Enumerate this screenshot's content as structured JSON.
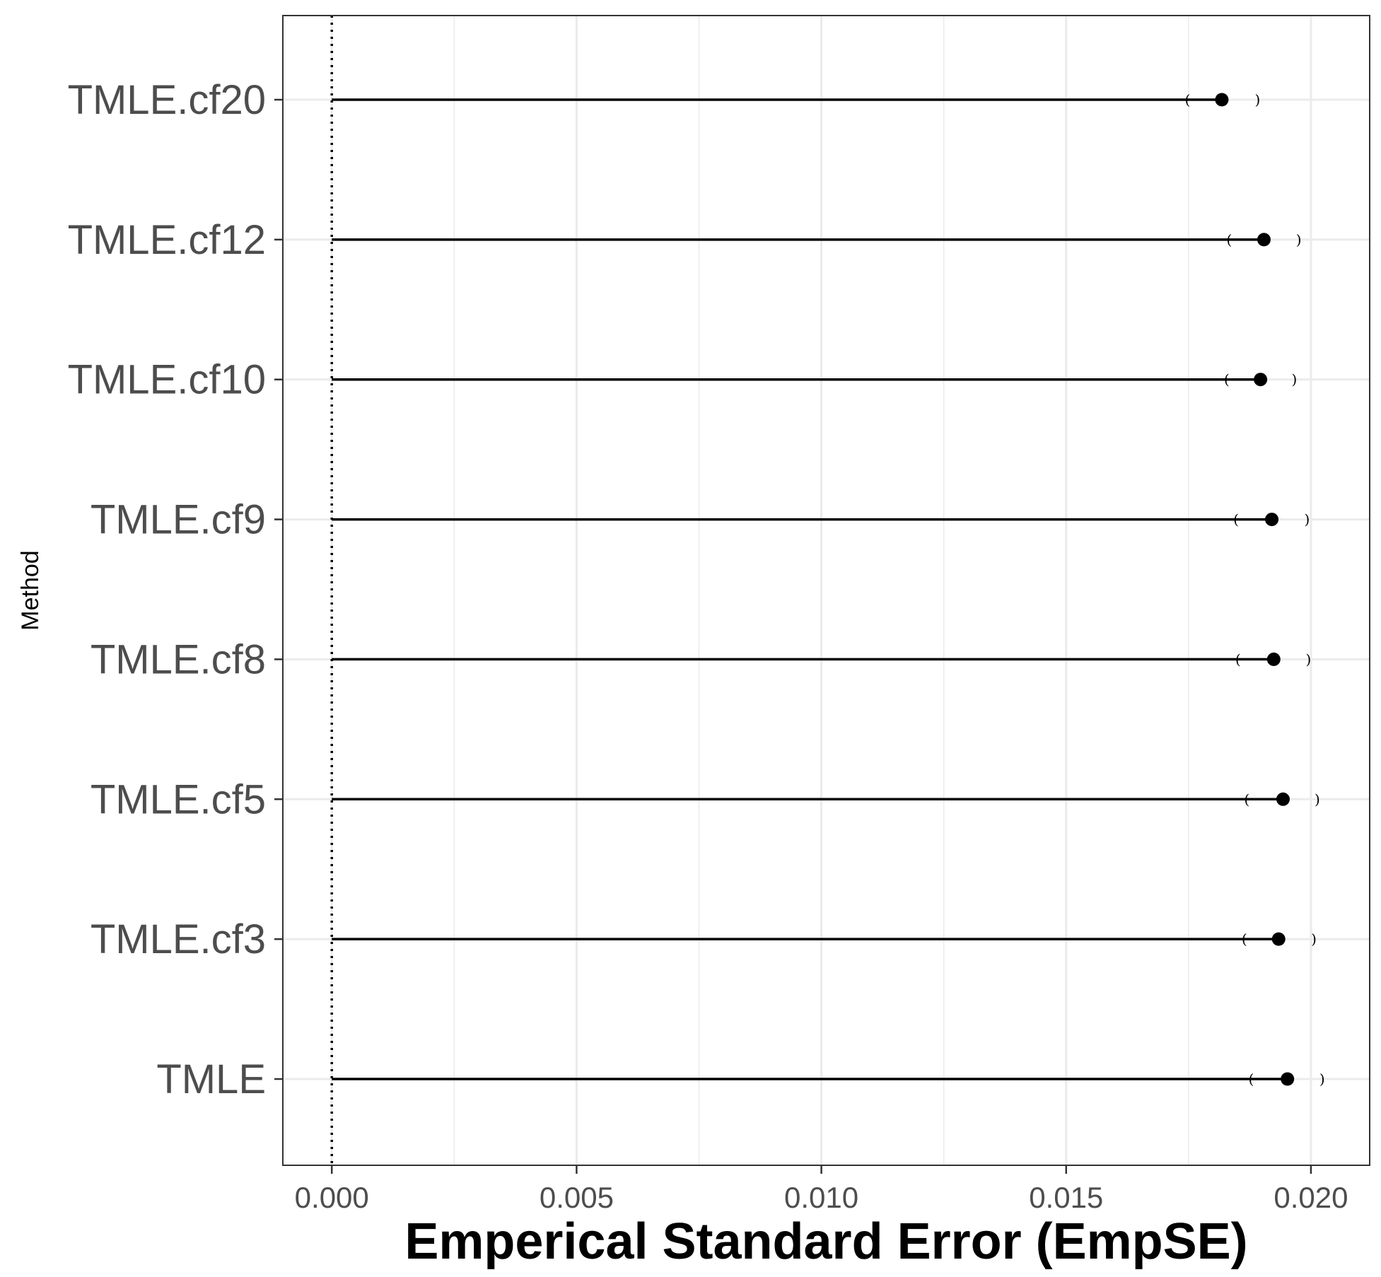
{
  "chart_data": {
    "type": "lollipop",
    "title": "",
    "xlabel": "Emperical Standard Error (EmpSE)",
    "ylabel": "Method",
    "xlim": [
      -0.001,
      0.0212
    ],
    "x_ticks": [
      0.0,
      0.005,
      0.01,
      0.015,
      0.02
    ],
    "x_tick_labels": [
      "0.000",
      "0.005",
      "0.010",
      "0.015",
      "0.020"
    ],
    "reference_line": 0,
    "grid": true,
    "categories": [
      "TMLE.cf20",
      "TMLE.cf12",
      "TMLE.cf10",
      "TMLE.cf9",
      "TMLE.cf8",
      "TMLE.cf5",
      "TMLE.cf3",
      "TMLE"
    ],
    "values": [
      0.01818,
      0.01904,
      0.01897,
      0.0192,
      0.01924,
      0.01943,
      0.01934,
      0.01952
    ],
    "ci_lower": [
      0.01748,
      0.01833,
      0.01828,
      0.01847,
      0.01851,
      0.01869,
      0.01864,
      0.01878
    ],
    "ci_upper": [
      0.01891,
      0.01975,
      0.01966,
      0.01992,
      0.01995,
      0.02013,
      0.02006,
      0.02023
    ],
    "ci_open": "(",
    "ci_close": ")",
    "colors": {
      "line": "#000000",
      "grid": "#ebebeb",
      "panel_border": "#333333",
      "tick_text": "#4d4d4d"
    }
  }
}
